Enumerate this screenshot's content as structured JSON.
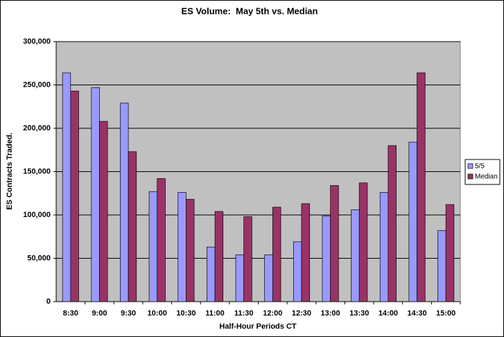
{
  "chart_data": {
    "type": "bar",
    "title": "ES Volume:  May 5th vs. Median",
    "x_label": "Half-Hour Periods CT",
    "y_label": "ES Contracts Traded.",
    "categories": [
      "8:30",
      "9:00",
      "9:30",
      "10:00",
      "10:30",
      "11:00",
      "11:30",
      "12:00",
      "12:30",
      "13:00",
      "13:30",
      "14:00",
      "14:30",
      "15:00"
    ],
    "series": [
      {
        "name": "5/5",
        "color": "#9999ff",
        "values": [
          264000,
          247000,
          229000,
          127000,
          126000,
          63000,
          54000,
          54000,
          69000,
          99000,
          106000,
          126000,
          184000,
          82000
        ]
      },
      {
        "name": "Median",
        "color": "#993366",
        "values": [
          243000,
          208000,
          173000,
          142000,
          118000,
          104000,
          98000,
          109000,
          113000,
          134000,
          137000,
          180000,
          264000,
          112000
        ]
      }
    ],
    "ylim": [
      0,
      300000
    ],
    "yticks": [
      0,
      {
        "value": 50000,
        "label": "50,000"
      },
      {
        "value": 100000,
        "label": "100,000"
      },
      {
        "value": 150000,
        "label": "150,000"
      },
      {
        "value": 200000,
        "label": "200,000"
      },
      {
        "value": 250000,
        "label": "250,000"
      },
      {
        "value": 300000,
        "label": "300,000"
      }
    ],
    "grid": true,
    "legend": "right"
  }
}
